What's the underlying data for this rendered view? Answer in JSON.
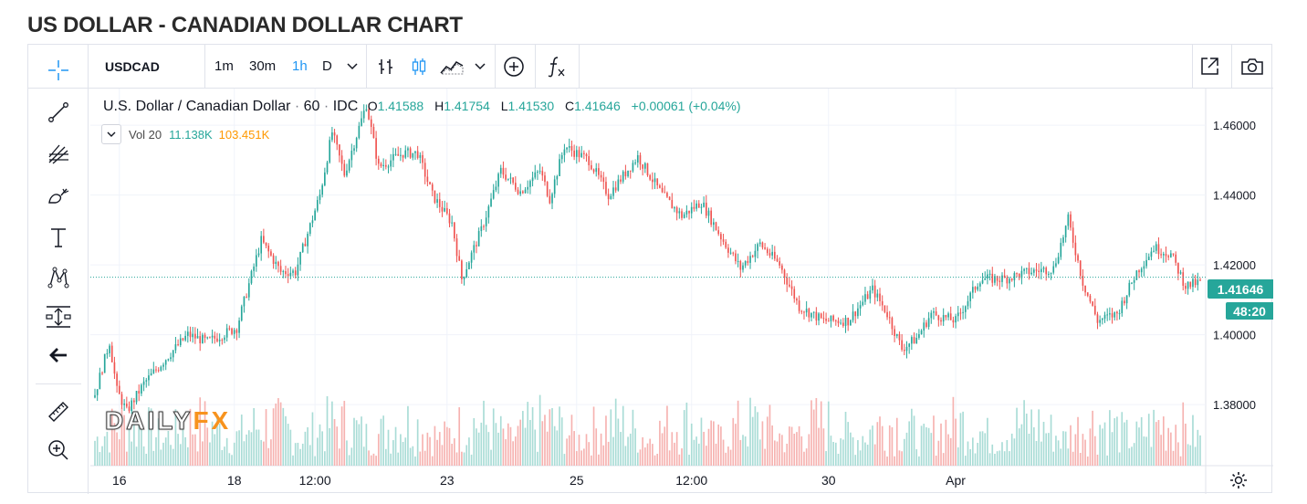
{
  "page_title": "US DOLLAR - CANADIAN DOLLAR CHART",
  "toolbar": {
    "symbol": "USDCAD",
    "intervals": [
      "1m",
      "30m",
      "1h",
      "D"
    ],
    "active_interval": "1h",
    "icons": [
      "chevron-down-icon",
      "bar-style-icon",
      "candle-style-icon",
      "area-style-icon",
      "chevron-down-icon",
      "compare-add-icon",
      "indicators-fx-icon",
      "popout-icon",
      "camera-icon"
    ]
  },
  "left_tools": [
    "crosshair-icon",
    "trend-line-icon",
    "fib-tool-icon",
    "brush-icon",
    "text-tool-icon",
    "pattern-icon",
    "measure-icon",
    "back-arrow-icon",
    "ruler-icon",
    "zoom-in-icon"
  ],
  "legend": {
    "name": "U.S. Dollar / Canadian Dollar",
    "dot": "·",
    "interval": "60",
    "source": "IDC",
    "o_label": "O",
    "o_value": "1.41588",
    "h_label": "H",
    "h_value": "1.41754",
    "l_label": "L",
    "l_value": "1.41530",
    "c_label": "C",
    "c_value": "1.41646",
    "change": "+0.00061 (+0.04%)",
    "vol_label": "Vol 20",
    "vol_value": "11.138K",
    "vol_ma": "103.451K"
  },
  "watermark": {
    "left": "DAILY",
    "right": "FX"
  },
  "price_badge": "1.41646",
  "countdown_badge": "48:20",
  "colors": {
    "up": "#26a69a",
    "down": "#ef5350",
    "vol_up": "#a9dcd6",
    "vol_down": "#f6b2b0",
    "accent": "#2196f3",
    "vol_ma": "#ff9800",
    "badge": "#26a69a"
  },
  "chart_data": {
    "type": "candlestick",
    "title": "US DOLLAR - CANADIAN DOLLAR CHART",
    "symbol": "USDCAD",
    "interval": "1h",
    "ylim": [
      1.3625,
      1.4705
    ],
    "yticks": [
      1.38,
      1.4,
      1.42,
      1.44,
      1.46
    ],
    "ytick_labels": [
      "1.38000",
      "1.40000",
      "1.42000",
      "1.44000",
      "1.46000"
    ],
    "xtick_labels": [
      "16",
      "18",
      "12:00",
      "23",
      "25",
      "12:00",
      "30",
      "Apr"
    ],
    "last_price": 1.41646,
    "anchors": [
      [
        0,
        1.383
      ],
      [
        6,
        1.398
      ],
      [
        9,
        1.384
      ],
      [
        13,
        1.378
      ],
      [
        20,
        1.386
      ],
      [
        30,
        1.394
      ],
      [
        38,
        1.4
      ],
      [
        46,
        1.398
      ],
      [
        58,
        1.402
      ],
      [
        68,
        1.427
      ],
      [
        76,
        1.418
      ],
      [
        82,
        1.418
      ],
      [
        92,
        1.44
      ],
      [
        97,
        1.458
      ],
      [
        102,
        1.446
      ],
      [
        111,
        1.466
      ],
      [
        116,
        1.448
      ],
      [
        126,
        1.452
      ],
      [
        132,
        1.452
      ],
      [
        138,
        1.44
      ],
      [
        146,
        1.432
      ],
      [
        150,
        1.416
      ],
      [
        158,
        1.43
      ],
      [
        166,
        1.447
      ],
      [
        174,
        1.441
      ],
      [
        182,
        1.447
      ],
      [
        186,
        1.439
      ],
      [
        192,
        1.454
      ],
      [
        202,
        1.45
      ],
      [
        210,
        1.44
      ],
      [
        222,
        1.451
      ],
      [
        232,
        1.44
      ],
      [
        240,
        1.434
      ],
      [
        248,
        1.438
      ],
      [
        256,
        1.428
      ],
      [
        264,
        1.419
      ],
      [
        272,
        1.426
      ],
      [
        280,
        1.42
      ],
      [
        288,
        1.408
      ],
      [
        298,
        1.404
      ],
      [
        308,
        1.404
      ],
      [
        318,
        1.413
      ],
      [
        324,
        1.406
      ],
      [
        330,
        1.396
      ],
      [
        336,
        1.399
      ],
      [
        342,
        1.406
      ],
      [
        352,
        1.404
      ],
      [
        362,
        1.416
      ],
      [
        372,
        1.416
      ],
      [
        382,
        1.418
      ],
      [
        392,
        1.419
      ],
      [
        398,
        1.433
      ],
      [
        404,
        1.415
      ],
      [
        410,
        1.404
      ],
      [
        418,
        1.406
      ],
      [
        426,
        1.418
      ],
      [
        433,
        1.425
      ],
      [
        440,
        1.423
      ],
      [
        446,
        1.414
      ],
      [
        452,
        1.415
      ]
    ],
    "volume_ma20": 103451,
    "last_volume": 11138
  }
}
